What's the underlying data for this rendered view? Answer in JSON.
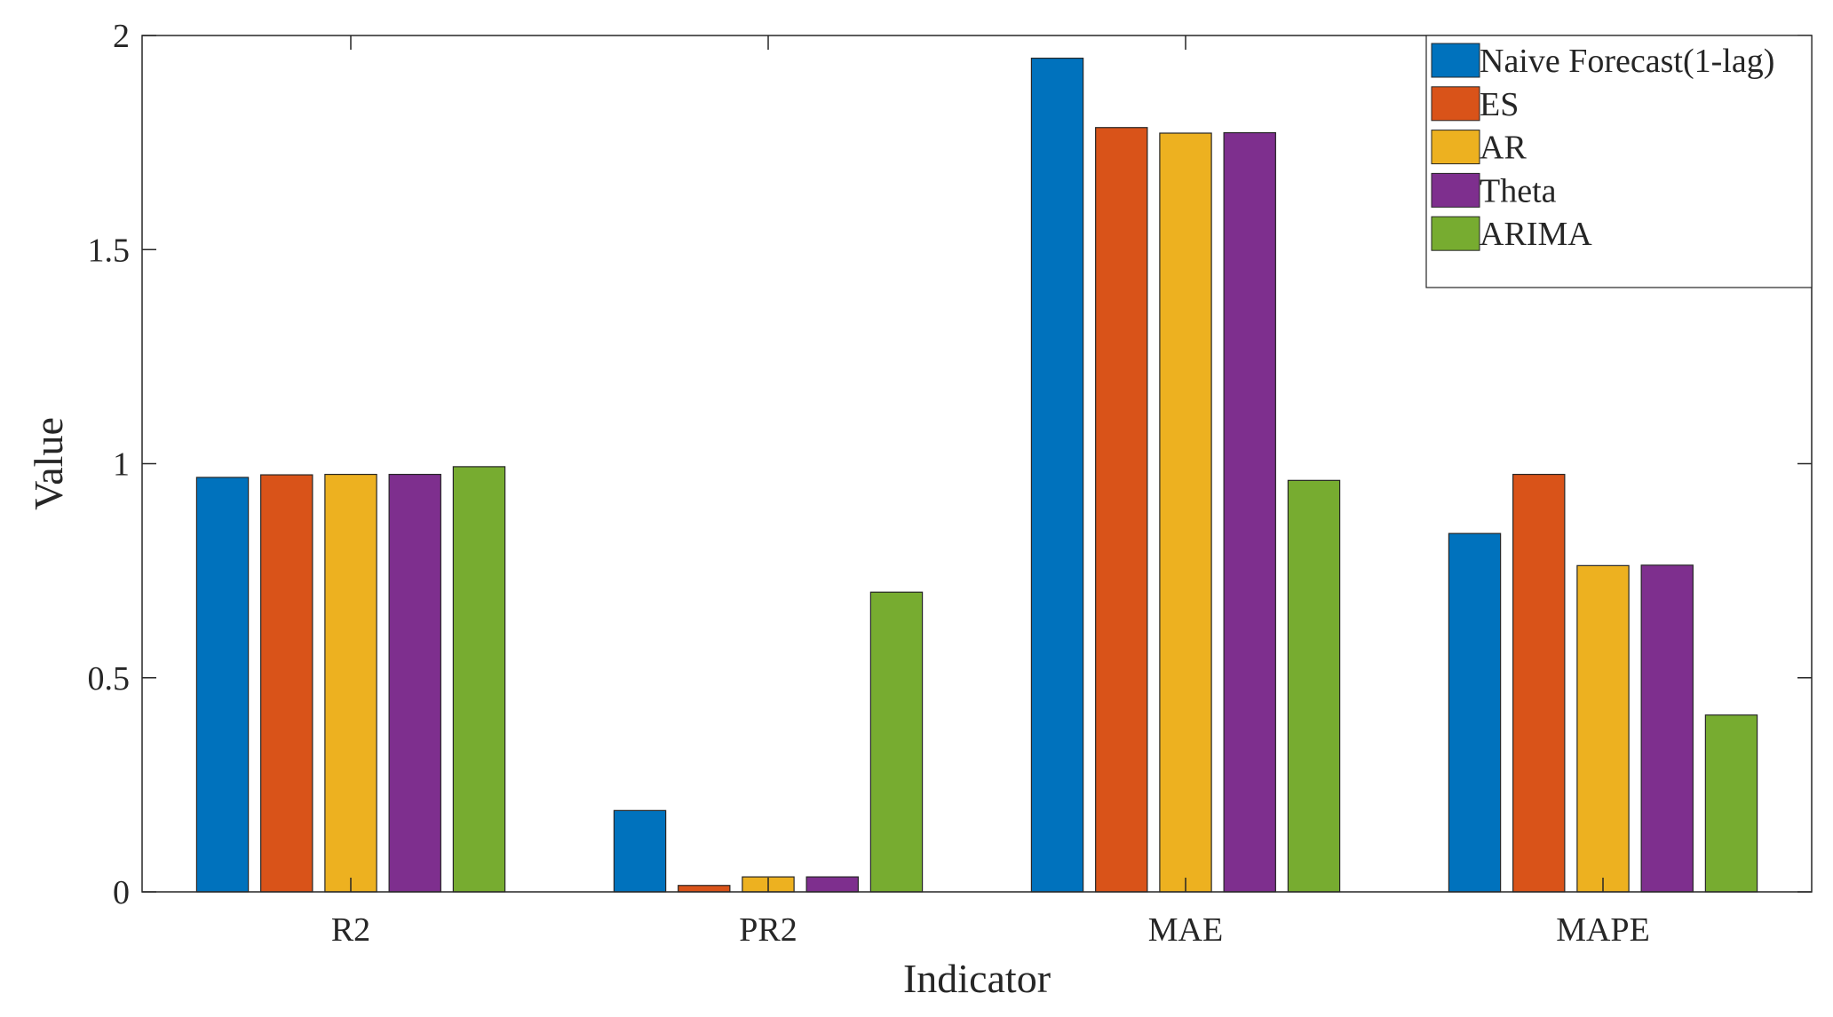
{
  "chart_data": {
    "type": "bar",
    "title": "",
    "xlabel": "Indicator",
    "ylabel": "Value",
    "ylim": [
      0,
      2
    ],
    "yticks": [
      0,
      0.5,
      1,
      1.5,
      2
    ],
    "ytick_labels": [
      "0",
      "0.5",
      "1",
      "1.5",
      "2"
    ],
    "categories": [
      "R2",
      "PR2",
      "MAE",
      "MAPE"
    ],
    "legend_position": "top-right",
    "grid": false,
    "series": [
      {
        "name": "Naive Forecast(1-lag)",
        "color": "#0072BD",
        "values": [
          0.968,
          0.19,
          1.947,
          0.837
        ]
      },
      {
        "name": "ES",
        "color": "#D95319",
        "values": [
          0.974,
          0.015,
          1.785,
          0.975
        ]
      },
      {
        "name": "AR",
        "color": "#EDB120",
        "values": [
          0.975,
          0.035,
          1.772,
          0.762
        ]
      },
      {
        "name": "Theta",
        "color": "#7E2F8E",
        "values": [
          0.975,
          0.035,
          1.773,
          0.763
        ]
      },
      {
        "name": "ARIMA",
        "color": "#77AC30",
        "values": [
          0.993,
          0.7,
          0.961,
          0.413
        ]
      }
    ]
  }
}
